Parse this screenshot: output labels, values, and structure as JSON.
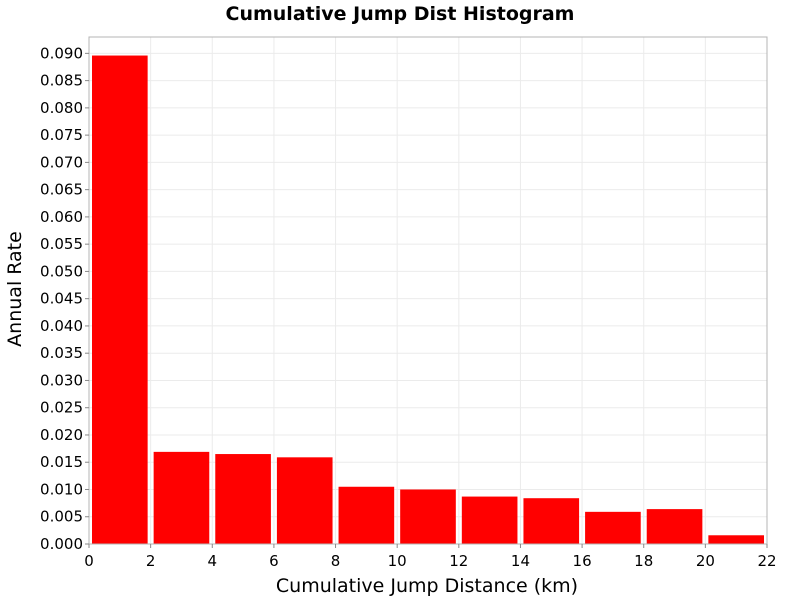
{
  "chart_data": {
    "type": "bar",
    "title": "Cumulative Jump Dist Histogram",
    "xlabel": "Cumulative Jump Distance (km)",
    "ylabel": "Annual Rate",
    "xlim": [
      0,
      22
    ],
    "ylim": [
      0,
      0.093
    ],
    "bin_width": 2,
    "x_ticks": [
      "0",
      "2",
      "4",
      "6",
      "8",
      "10",
      "12",
      "14",
      "16",
      "18",
      "20",
      "22"
    ],
    "y_ticks": [
      "0.000",
      "0.005",
      "0.010",
      "0.015",
      "0.020",
      "0.025",
      "0.030",
      "0.035",
      "0.040",
      "0.045",
      "0.050",
      "0.055",
      "0.060",
      "0.065",
      "0.070",
      "0.075",
      "0.080",
      "0.085",
      "0.090"
    ],
    "bins": [
      {
        "x0": 0,
        "x1": 2,
        "value": 0.0896
      },
      {
        "x0": 2,
        "x1": 4,
        "value": 0.0169
      },
      {
        "x0": 4,
        "x1": 6,
        "value": 0.0165
      },
      {
        "x0": 6,
        "x1": 8,
        "value": 0.0159
      },
      {
        "x0": 8,
        "x1": 10,
        "value": 0.0105
      },
      {
        "x0": 10,
        "x1": 12,
        "value": 0.01
      },
      {
        "x0": 12,
        "x1": 14,
        "value": 0.0087
      },
      {
        "x0": 14,
        "x1": 16,
        "value": 0.0084
      },
      {
        "x0": 16,
        "x1": 18,
        "value": 0.0059
      },
      {
        "x0": 18,
        "x1": 20,
        "value": 0.0064
      },
      {
        "x0": 20,
        "x1": 22,
        "value": 0.0016
      }
    ],
    "grid": true,
    "bar_color": "#ff0000",
    "grid_color": "#ebebeb",
    "legend": "none"
  }
}
